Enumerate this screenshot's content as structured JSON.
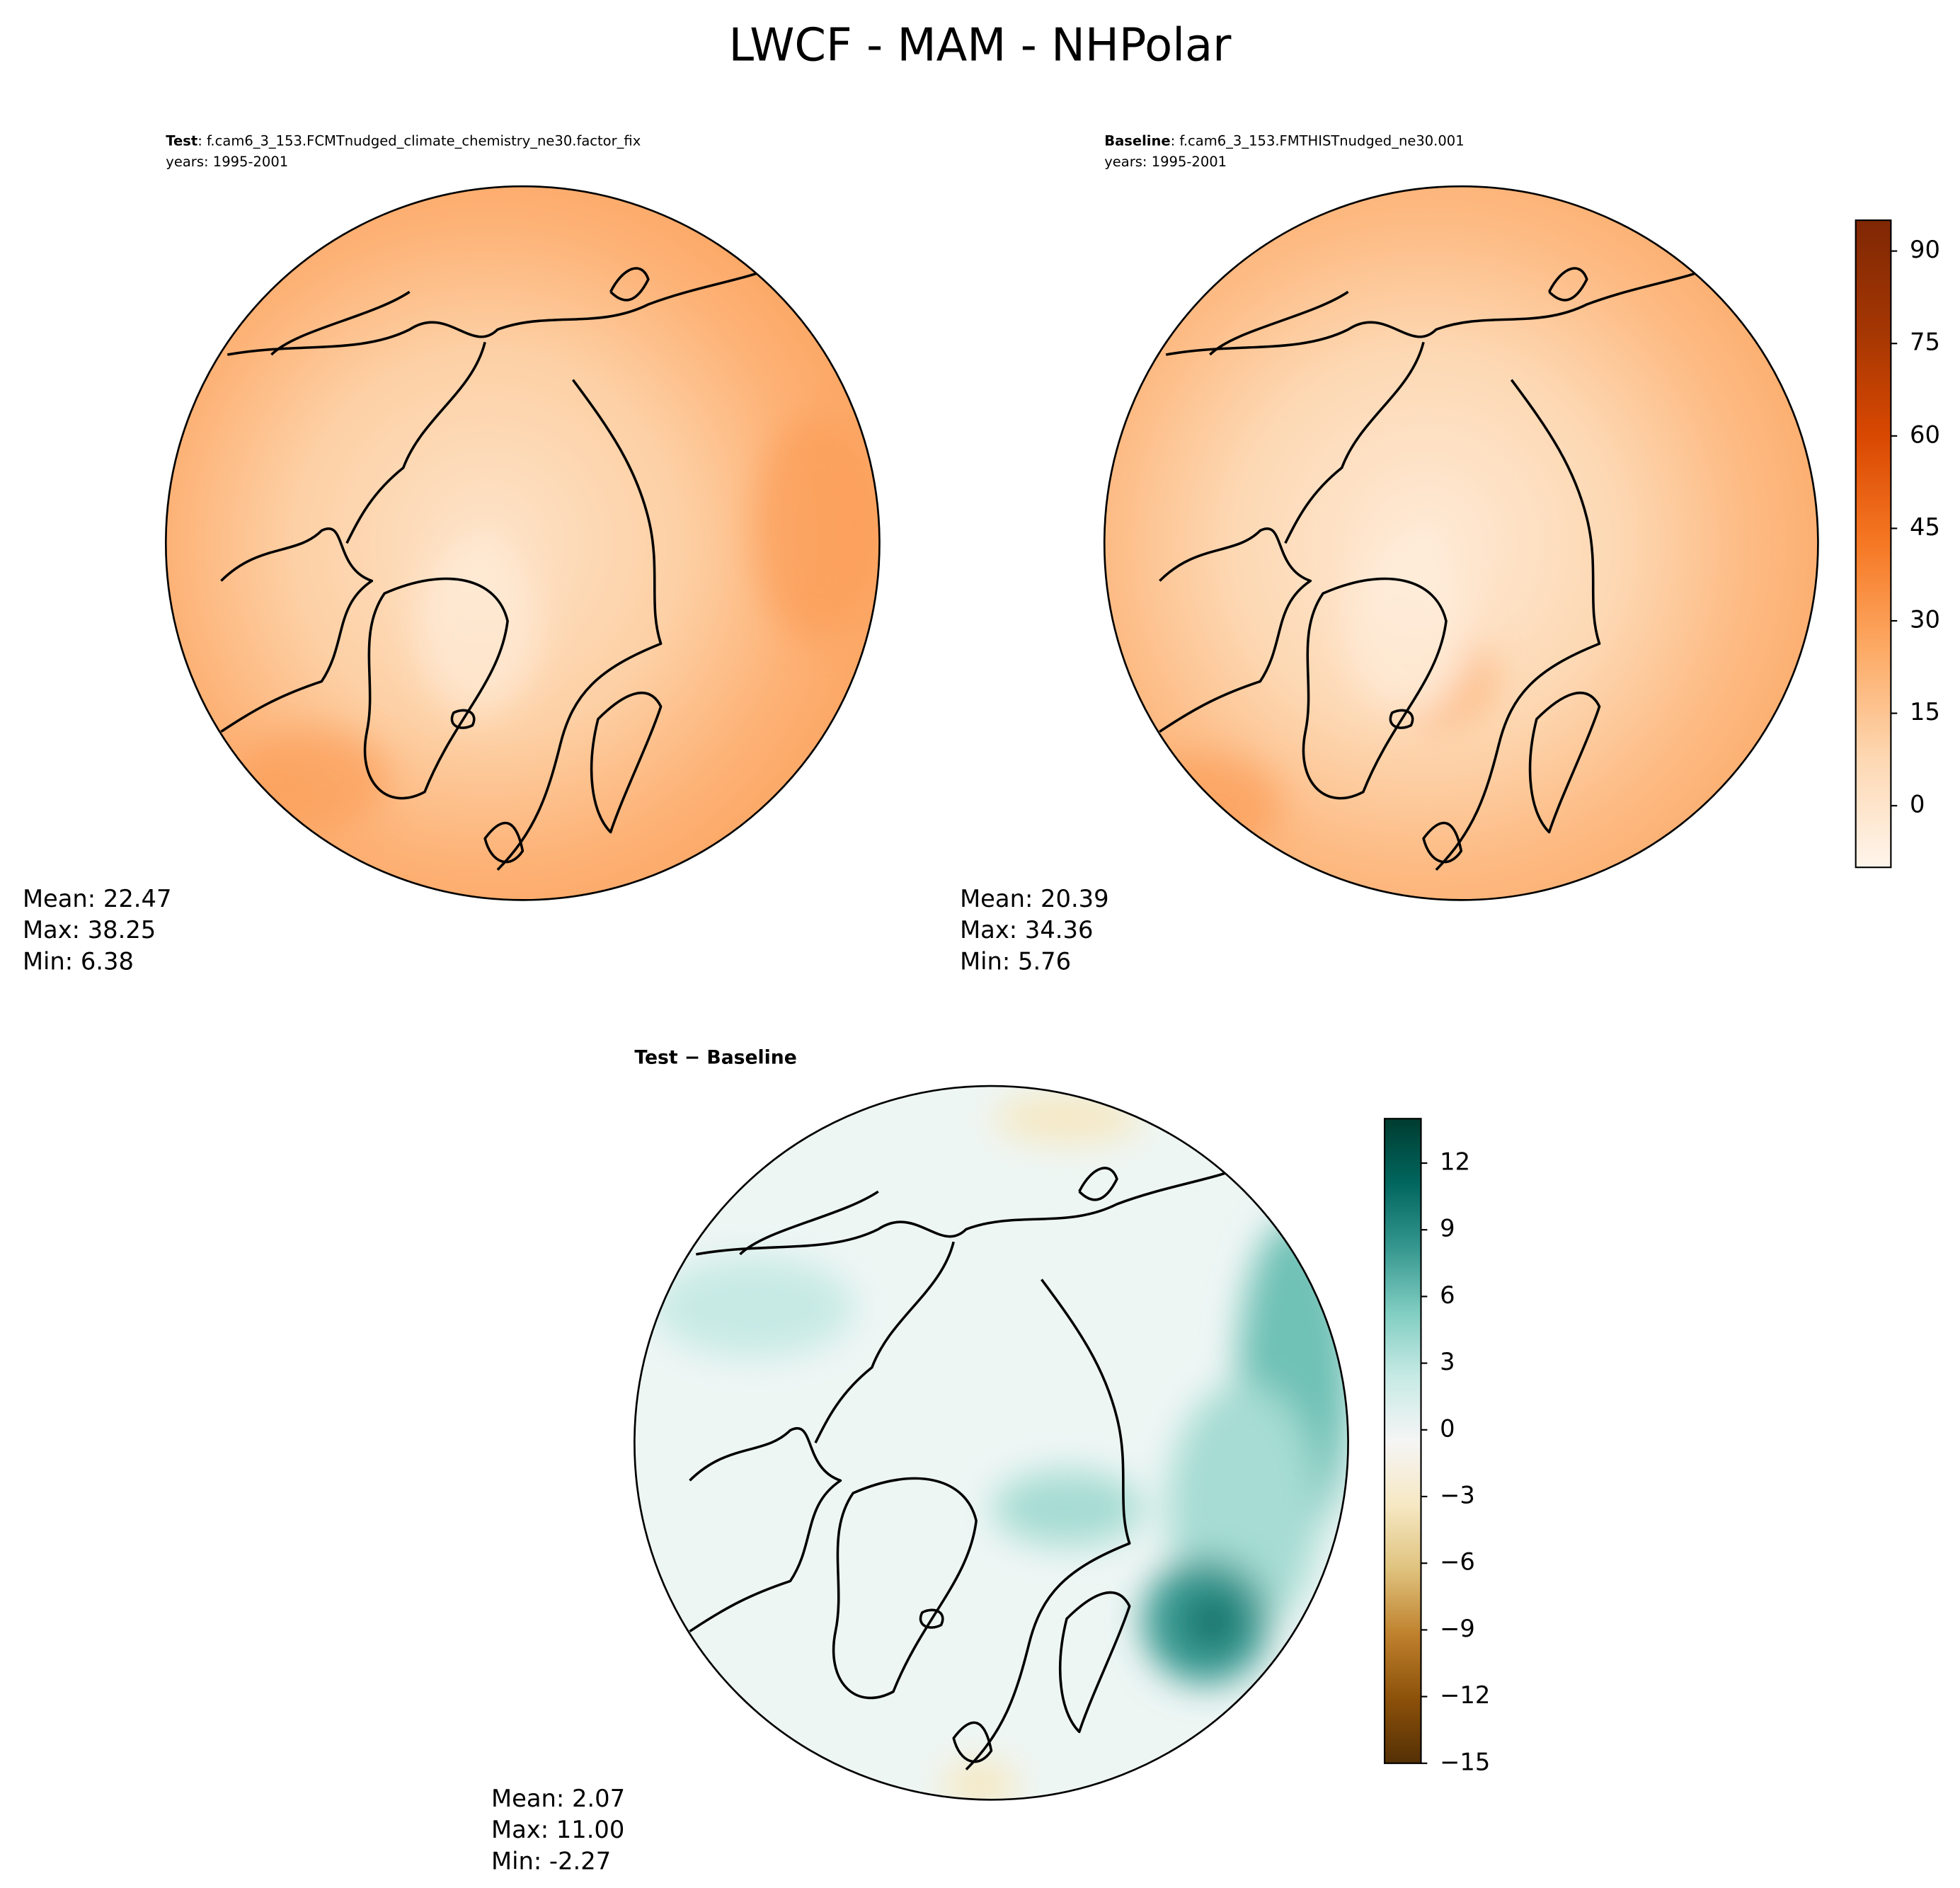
{
  "title": "LWCF - MAM - NHPolar",
  "panels": [
    {
      "name": "Test",
      "case": ": f.cam6_3_153.FCMTnudged_climate_chemistry_ne30.factor_fix",
      "years": "years: 1995-2001",
      "stats": [
        "Mean: 22.47",
        "Max: 38.25",
        "Min:  6.38"
      ]
    },
    {
      "name": "Baseline",
      "case": ": f.cam6_3_153.FMTHISTnudged_ne30.001",
      "years": "years: 1995-2001",
      "stats": [
        "Mean: 20.39",
        "Max: 34.36",
        "Min:  5.76"
      ]
    },
    {
      "name": "Test − Baseline",
      "stats": [
        "Mean:  2.07",
        "Max: 11.00",
        "Min: -2.27"
      ]
    }
  ],
  "colorbars": [
    {
      "lim": [
        -10,
        95
      ],
      "ticks": [
        0,
        15,
        30,
        45,
        60,
        75,
        90
      ],
      "colormap": [
        "#fff5eb",
        "#fdd8b3",
        "#fdab67",
        "#f67824",
        "#d94801",
        "#a33603",
        "#7f2704"
      ]
    },
    {
      "lim": [
        -15,
        14
      ],
      "ticks": [
        {
          "value": -15,
          "label": "−15"
        },
        {
          "value": -12,
          "label": "−12"
        },
        {
          "value": -9,
          "label": "−9"
        },
        {
          "value": -6,
          "label": "−6"
        },
        {
          "value": -3,
          "label": "−3"
        },
        0,
        3,
        6,
        9,
        12
      ],
      "colormap": [
        "#543005",
        "#8c510a",
        "#bf812d",
        "#dfc27d",
        "#f6e8c3",
        "#f5f5f5",
        "#c7eae5",
        "#80cdc1",
        "#35978f",
        "#01665e",
        "#003c30"
      ]
    }
  ]
}
